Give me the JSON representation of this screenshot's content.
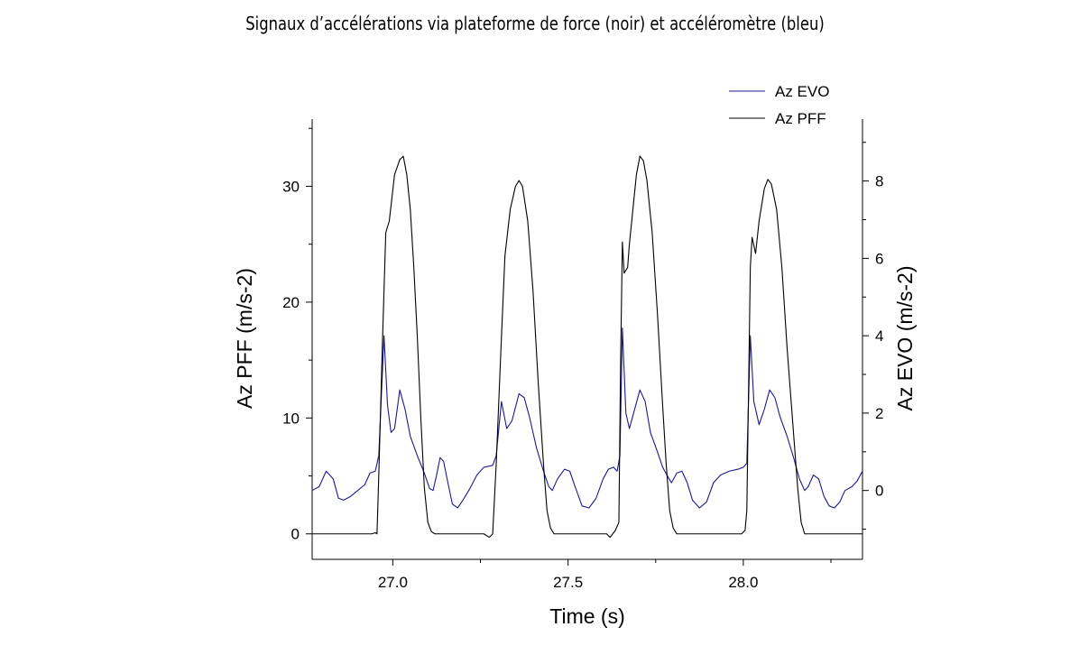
{
  "chart_data": {
    "type": "line",
    "title": "Signaux d’accélérations via plateforme de force (noir) et accéléromètre (bleu)",
    "xlabel": "Time (s)",
    "ylabel_left": "Az PFF (m/s-2)",
    "ylabel_right": "Az EVO (m/s-2)",
    "xlim": [
      26.77,
      28.34
    ],
    "ylim_left": [
      -2.2,
      35.8
    ],
    "ylim_right": [
      -1.78,
      9.6
    ],
    "x_ticks": [
      27.0,
      27.5,
      28.0
    ],
    "x_tick_labels": [
      "27.0",
      "27.5",
      "28.0"
    ],
    "y_left_ticks": [
      0,
      10,
      20,
      30
    ],
    "y_left_tick_labels": [
      "0",
      "10",
      "20",
      "30"
    ],
    "y_right_ticks": [
      0,
      2,
      4,
      6,
      8
    ],
    "y_right_tick_labels": [
      "0",
      "2",
      "4",
      "6",
      "8"
    ],
    "grid": false,
    "legend_position": "top-right",
    "series": [
      {
        "name": "Az EVO",
        "axis": "right",
        "color": "#1a1a8c",
        "points": [
          [
            26.77,
            0.0
          ],
          [
            26.79,
            0.1
          ],
          [
            26.81,
            0.5
          ],
          [
            26.83,
            0.3
          ],
          [
            26.845,
            -0.2
          ],
          [
            26.86,
            -0.25
          ],
          [
            26.88,
            -0.15
          ],
          [
            26.9,
            0.0
          ],
          [
            26.92,
            0.15
          ],
          [
            26.935,
            0.45
          ],
          [
            26.95,
            0.5
          ],
          [
            26.96,
            0.9
          ],
          [
            26.975,
            4.0
          ],
          [
            26.985,
            2.2
          ],
          [
            26.995,
            1.5
          ],
          [
            27.005,
            1.6
          ],
          [
            27.02,
            2.6
          ],
          [
            27.035,
            2.1
          ],
          [
            27.05,
            1.4
          ],
          [
            27.07,
            0.9
          ],
          [
            27.09,
            0.45
          ],
          [
            27.105,
            0.05
          ],
          [
            27.115,
            0.0
          ],
          [
            27.125,
            0.4
          ],
          [
            27.135,
            0.85
          ],
          [
            27.145,
            0.75
          ],
          [
            27.155,
            0.3
          ],
          [
            27.17,
            -0.35
          ],
          [
            27.185,
            -0.45
          ],
          [
            27.2,
            -0.25
          ],
          [
            27.22,
            0.05
          ],
          [
            27.24,
            0.4
          ],
          [
            27.26,
            0.6
          ],
          [
            27.285,
            0.65
          ],
          [
            27.295,
            0.9
          ],
          [
            27.31,
            2.3
          ],
          [
            27.325,
            1.6
          ],
          [
            27.34,
            1.8
          ],
          [
            27.36,
            2.5
          ],
          [
            27.375,
            2.4
          ],
          [
            27.39,
            1.9
          ],
          [
            27.41,
            1.1
          ],
          [
            27.43,
            0.5
          ],
          [
            27.445,
            0.1
          ],
          [
            27.455,
            0.0
          ],
          [
            27.47,
            0.3
          ],
          [
            27.49,
            0.55
          ],
          [
            27.505,
            0.5
          ],
          [
            27.52,
            0.1
          ],
          [
            27.54,
            -0.4
          ],
          [
            27.56,
            -0.45
          ],
          [
            27.58,
            -0.2
          ],
          [
            27.6,
            0.3
          ],
          [
            27.615,
            0.55
          ],
          [
            27.63,
            0.6
          ],
          [
            27.64,
            0.5
          ],
          [
            27.648,
            0.9
          ],
          [
            27.655,
            4.2
          ],
          [
            27.665,
            2.0
          ],
          [
            27.675,
            1.6
          ],
          [
            27.69,
            2.1
          ],
          [
            27.705,
            2.6
          ],
          [
            27.72,
            2.3
          ],
          [
            27.735,
            1.5
          ],
          [
            27.755,
            1.0
          ],
          [
            27.77,
            0.6
          ],
          [
            27.785,
            0.35
          ],
          [
            27.795,
            0.2
          ],
          [
            27.81,
            0.45
          ],
          [
            27.825,
            0.5
          ],
          [
            27.84,
            0.2
          ],
          [
            27.855,
            -0.25
          ],
          [
            27.875,
            -0.45
          ],
          [
            27.895,
            -0.3
          ],
          [
            27.915,
            0.2
          ],
          [
            27.935,
            0.4
          ],
          [
            27.96,
            0.5
          ],
          [
            27.985,
            0.55
          ],
          [
            28.0,
            0.6
          ],
          [
            28.01,
            0.7
          ],
          [
            28.02,
            4.0
          ],
          [
            28.03,
            2.3
          ],
          [
            28.045,
            1.7
          ],
          [
            28.06,
            2.1
          ],
          [
            28.075,
            2.6
          ],
          [
            28.09,
            2.4
          ],
          [
            28.105,
            1.9
          ],
          [
            28.125,
            1.4
          ],
          [
            28.145,
            0.8
          ],
          [
            28.16,
            0.3
          ],
          [
            28.175,
            0.0
          ],
          [
            28.185,
            0.1
          ],
          [
            28.2,
            0.4
          ],
          [
            28.215,
            0.3
          ],
          [
            28.23,
            -0.15
          ],
          [
            28.245,
            -0.4
          ],
          [
            28.26,
            -0.45
          ],
          [
            28.275,
            -0.3
          ],
          [
            28.29,
            0.0
          ],
          [
            28.31,
            0.1
          ],
          [
            28.325,
            0.25
          ],
          [
            28.34,
            0.5
          ]
        ]
      },
      {
        "name": "Az PFF",
        "axis": "left",
        "color": "#000000",
        "points": [
          [
            26.77,
            0.0
          ],
          [
            26.85,
            0.0
          ],
          [
            26.94,
            0.0
          ],
          [
            26.95,
            0.1
          ],
          [
            26.955,
            0.0
          ],
          [
            26.96,
            5.0
          ],
          [
            26.97,
            16.0
          ],
          [
            26.98,
            26.0
          ],
          [
            26.99,
            27.0
          ],
          [
            27.005,
            31.0
          ],
          [
            27.02,
            32.3
          ],
          [
            27.03,
            32.6
          ],
          [
            27.04,
            31.0
          ],
          [
            27.05,
            28.0
          ],
          [
            27.06,
            23.0
          ],
          [
            27.07,
            17.0
          ],
          [
            27.08,
            10.0
          ],
          [
            27.09,
            4.0
          ],
          [
            27.1,
            1.0
          ],
          [
            27.11,
            0.2
          ],
          [
            27.12,
            0.0
          ],
          [
            27.2,
            0.0
          ],
          [
            27.26,
            0.0
          ],
          [
            27.275,
            -0.3
          ],
          [
            27.285,
            0.0
          ],
          [
            27.295,
            6.0
          ],
          [
            27.31,
            17.0
          ],
          [
            27.32,
            24.0
          ],
          [
            27.335,
            28.0
          ],
          [
            27.35,
            30.0
          ],
          [
            27.36,
            30.5
          ],
          [
            27.37,
            30.0
          ],
          [
            27.385,
            27.0
          ],
          [
            27.4,
            21.0
          ],
          [
            27.415,
            13.0
          ],
          [
            27.43,
            6.0
          ],
          [
            27.44,
            2.0
          ],
          [
            27.45,
            0.5
          ],
          [
            27.46,
            0.0
          ],
          [
            27.54,
            0.0
          ],
          [
            27.61,
            0.0
          ],
          [
            27.62,
            -0.3
          ],
          [
            27.635,
            0.3
          ],
          [
            27.645,
            1.0
          ],
          [
            27.65,
            15.0
          ],
          [
            27.655,
            25.2
          ],
          [
            27.66,
            22.5
          ],
          [
            27.67,
            23.0
          ],
          [
            27.675,
            25.0
          ],
          [
            27.685,
            28.0
          ],
          [
            27.695,
            31.0
          ],
          [
            27.705,
            32.6
          ],
          [
            27.715,
            32.2
          ],
          [
            27.725,
            30.5
          ],
          [
            27.74,
            26.0
          ],
          [
            27.755,
            19.0
          ],
          [
            27.77,
            11.0
          ],
          [
            27.78,
            6.0
          ],
          [
            27.79,
            2.0
          ],
          [
            27.8,
            0.5
          ],
          [
            27.81,
            0.0
          ],
          [
            27.9,
            0.0
          ],
          [
            27.995,
            0.0
          ],
          [
            28.005,
            0.3
          ],
          [
            28.01,
            2.0
          ],
          [
            28.02,
            23.0
          ],
          [
            28.025,
            25.6
          ],
          [
            28.035,
            24.2
          ],
          [
            28.045,
            27.0
          ],
          [
            28.06,
            29.8
          ],
          [
            28.07,
            30.6
          ],
          [
            28.08,
            30.2
          ],
          [
            28.095,
            28.0
          ],
          [
            28.11,
            23.0
          ],
          [
            28.125,
            16.0
          ],
          [
            28.14,
            10.0
          ],
          [
            28.155,
            4.0
          ],
          [
            28.165,
            1.0
          ],
          [
            28.175,
            0.0
          ],
          [
            28.25,
            0.0
          ],
          [
            28.34,
            0.0
          ]
        ]
      }
    ]
  }
}
